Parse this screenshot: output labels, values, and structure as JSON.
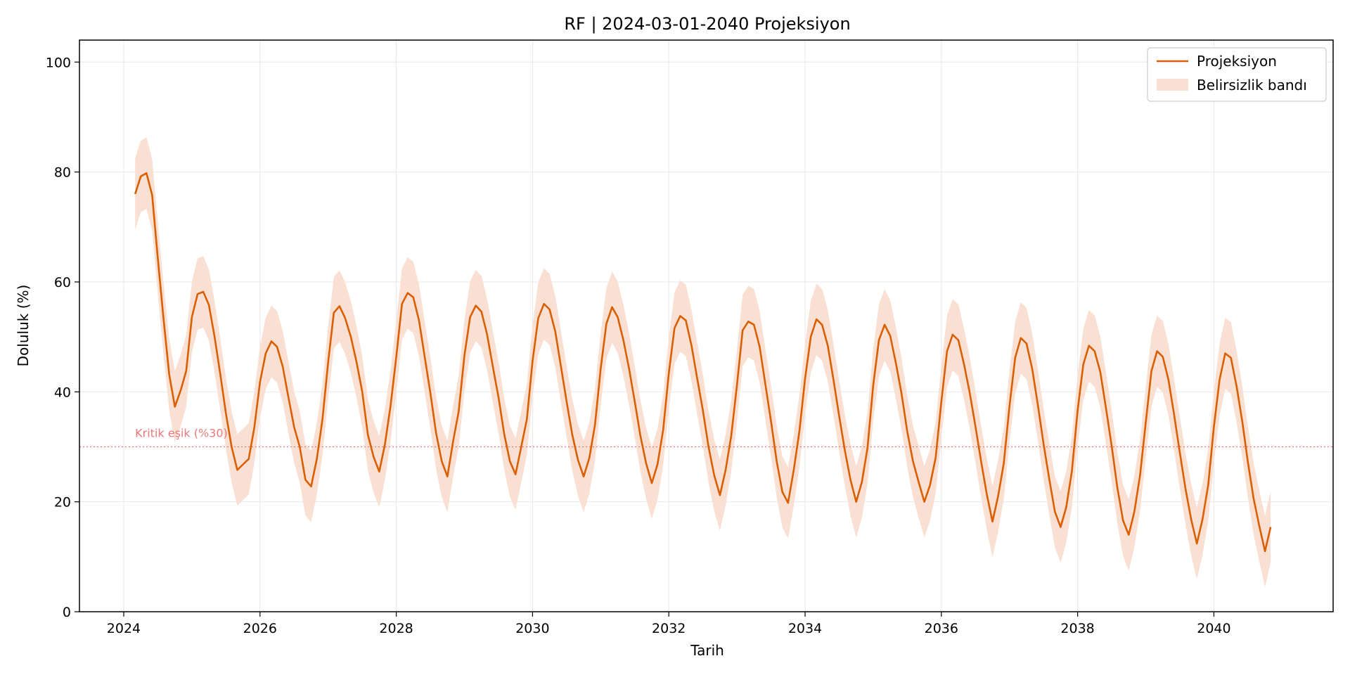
{
  "chart_data": {
    "type": "line",
    "title": "RF | 2024-03-01-2040 Projeksiyon",
    "xlabel": "Tarih",
    "ylabel": "Doluluk (%)",
    "xlim": [
      2023.35,
      2041.75
    ],
    "ylim": [
      0,
      104
    ],
    "x_ticks": [
      2024,
      2026,
      2028,
      2030,
      2032,
      2034,
      2036,
      2038,
      2040
    ],
    "x_tick_labels": [
      "2024",
      "2026",
      "2028",
      "2030",
      "2032",
      "2034",
      "2036",
      "2038",
      "2040"
    ],
    "y_ticks": [
      0,
      20,
      40,
      60,
      80,
      100
    ],
    "y_tick_labels": [
      "0",
      "20",
      "40",
      "60",
      "80",
      "100"
    ],
    "grid": true,
    "legend_position": "top-right",
    "colors": {
      "line": "#d95f02",
      "band": "#f9e0d2",
      "threshold": "#e8787a",
      "grid": "#e8e8e8"
    },
    "threshold": {
      "value": 30,
      "label": "Kritik eşik (%30)"
    },
    "series": [
      {
        "name": "Projeksiyon",
        "x_start": 2024.167,
        "step": 0.08333,
        "values": [
          76.0,
          79.2,
          79.8,
          75.8,
          64.2,
          53.4,
          43.2,
          37.3,
          40.2,
          43.8,
          53.6,
          57.8,
          58.2,
          55.8,
          50.0,
          43.2,
          36.0,
          30.0,
          25.8,
          26.8,
          27.8,
          33.5,
          41.8,
          47.0,
          49.2,
          48.2,
          44.6,
          39.0,
          33.6,
          30.0,
          24.0,
          22.8,
          27.8,
          35.0,
          45.4,
          54.4,
          55.6,
          53.4,
          50.0,
          45.4,
          40.0,
          32.2,
          28.2,
          25.5,
          30.5,
          37.5,
          46.4,
          56.0,
          58.0,
          57.2,
          53.0,
          46.4,
          39.8,
          32.6,
          27.4,
          24.6,
          31.0,
          36.5,
          46.6,
          53.6,
          55.7,
          54.6,
          50.4,
          44.6,
          39.0,
          32.4,
          27.4,
          25.0,
          30.0,
          35.0,
          45.6,
          53.4,
          56.0,
          55.0,
          51.0,
          44.6,
          38.2,
          32.2,
          27.6,
          24.6,
          28.0,
          34.0,
          44.2,
          52.4,
          55.4,
          53.6,
          49.4,
          44.2,
          38.2,
          32.0,
          27.0,
          23.4,
          26.8,
          33.0,
          43.4,
          51.6,
          53.8,
          53.0,
          48.4,
          42.4,
          36.6,
          30.0,
          24.8,
          21.2,
          25.8,
          32.0,
          41.2,
          51.2,
          52.8,
          52.2,
          48.2,
          41.4,
          34.6,
          27.4,
          21.8,
          19.8,
          25.8,
          32.8,
          42.4,
          50.0,
          53.2,
          52.2,
          48.4,
          42.2,
          35.6,
          29.4,
          24.0,
          20.0,
          23.6,
          29.8,
          41.2,
          49.4,
          52.2,
          50.2,
          45.2,
          39.6,
          32.8,
          27.4,
          23.6,
          20.0,
          23.0,
          28.0,
          38.2,
          47.4,
          50.4,
          49.4,
          45.0,
          39.8,
          33.8,
          27.4,
          21.4,
          16.4,
          21.0,
          27.0,
          37.4,
          46.2,
          49.8,
          48.8,
          44.2,
          37.6,
          30.6,
          24.2,
          18.2,
          15.4,
          19.0,
          25.6,
          36.6,
          45.0,
          48.4,
          47.4,
          43.6,
          37.0,
          30.2,
          22.6,
          16.6,
          14.0,
          18.2,
          24.8,
          34.4,
          43.8,
          47.4,
          46.4,
          42.2,
          35.8,
          29.0,
          22.4,
          16.8,
          12.4,
          16.8,
          23.0,
          33.6,
          42.2,
          47.0,
          46.2,
          41.0,
          34.6,
          27.2,
          20.6,
          15.6,
          11.0,
          15.4
        ]
      },
      {
        "name": "Belirsizlik bandı",
        "half_width": 6.5
      }
    ]
  }
}
